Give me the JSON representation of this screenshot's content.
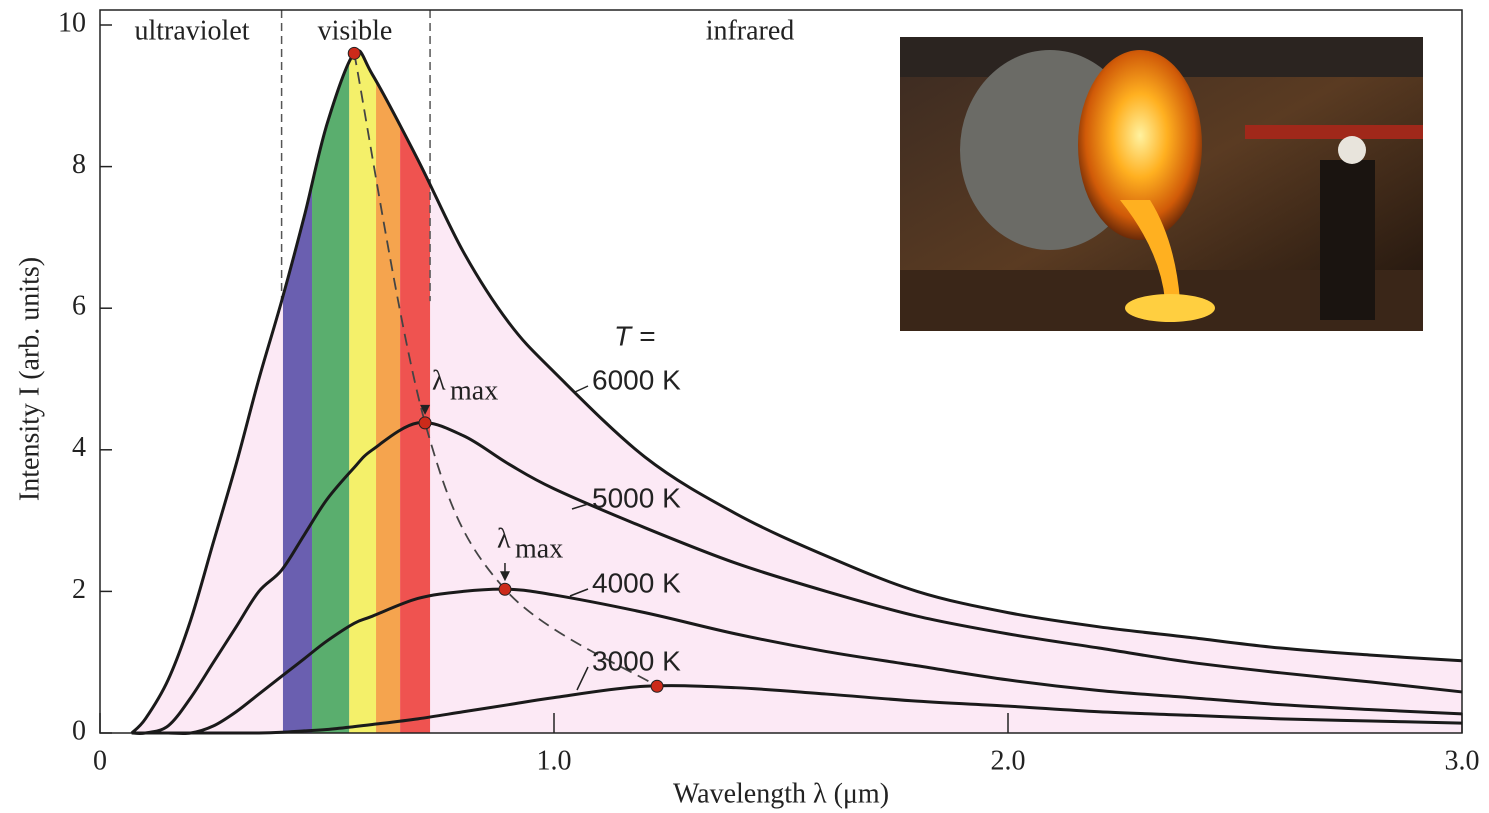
{
  "chart_data": {
    "type": "line",
    "x_label": "Wavelength λ (μm)",
    "y_label": "Intensity I (arb. units)",
    "regions": [
      "ultraviolet",
      "visible",
      "infrared"
    ],
    "visible_range": [
      0.4,
      0.727
    ],
    "band_edges": [
      0.403,
      0.467,
      0.549,
      0.608,
      0.661,
      0.727
    ],
    "band_colors": [
      "#6a5fb0",
      "#5aae6e",
      "#f4f06a",
      "#f5a44e",
      "#ef5350"
    ],
    "area_color": "#fce9f5",
    "temperature_label": "T =",
    "peak_label": {
      "symbol": "λ",
      "subscript": "max"
    },
    "x": [
      0.07,
      0.1,
      0.15,
      0.2,
      0.25,
      0.3,
      0.35,
      0.4,
      0.45,
      0.5,
      0.56,
      0.6,
      0.7,
      0.8,
      0.9,
      1.0,
      1.2,
      1.4,
      1.6,
      1.8,
      2.0,
      2.2,
      2.4,
      2.6,
      2.8,
      3.0
    ],
    "series": [
      {
        "name": "6000 K",
        "color": "#1a1a1a",
        "values": [
          0,
          0.2,
          0.75,
          1.6,
          2.7,
          3.8,
          5.0,
          6.1,
          7.3,
          8.6,
          9.6,
          9.3,
          8.1,
          6.8,
          5.8,
          5.1,
          3.9,
          3.1,
          2.5,
          2.0,
          1.7,
          1.5,
          1.35,
          1.2,
          1.1,
          1.02
        ]
      },
      {
        "name": "5000 K",
        "color": "#1a1a1a",
        "values": [
          0,
          0,
          0.1,
          0.5,
          1.0,
          1.5,
          2.0,
          2.3,
          2.8,
          3.3,
          3.75,
          4.0,
          4.38,
          4.2,
          3.8,
          3.45,
          2.9,
          2.4,
          2.0,
          1.65,
          1.4,
          1.2,
          1.0,
          0.85,
          0.72,
          0.58
        ]
      },
      {
        "name": "4000 K",
        "color": "#1a1a1a",
        "values": [
          0,
          0,
          0,
          0,
          0.1,
          0.3,
          0.55,
          0.8,
          1.05,
          1.3,
          1.55,
          1.65,
          1.9,
          2.0,
          2.03,
          1.95,
          1.7,
          1.4,
          1.15,
          0.95,
          0.75,
          0.6,
          0.5,
          0.4,
          0.33,
          0.27
        ]
      },
      {
        "name": "3000 K",
        "color": "#1a1a1a",
        "values": [
          0,
          0,
          0,
          0,
          0,
          0,
          0,
          0.01,
          0.03,
          0.05,
          0.09,
          0.12,
          0.2,
          0.3,
          0.4,
          0.5,
          0.66,
          0.64,
          0.55,
          0.45,
          0.38,
          0.3,
          0.25,
          0.2,
          0.17,
          0.14
        ]
      }
    ],
    "peaks": {
      "color": "#cc2a1a",
      "x": [
        0.56,
        0.716,
        0.892,
        1.227
      ],
      "values": [
        9.6,
        4.38,
        2.03,
        0.66
      ]
    },
    "xlim": [
      0,
      3
    ],
    "ylim": [
      0,
      10
    ],
    "xticks": [
      0,
      {
        "value": 1,
        "label": "1.0"
      },
      {
        "value": 2,
        "label": "2.0"
      },
      {
        "value": 3,
        "label": "3.0"
      }
    ],
    "yticks": [
      0,
      2,
      4,
      6,
      8,
      10
    ]
  }
}
